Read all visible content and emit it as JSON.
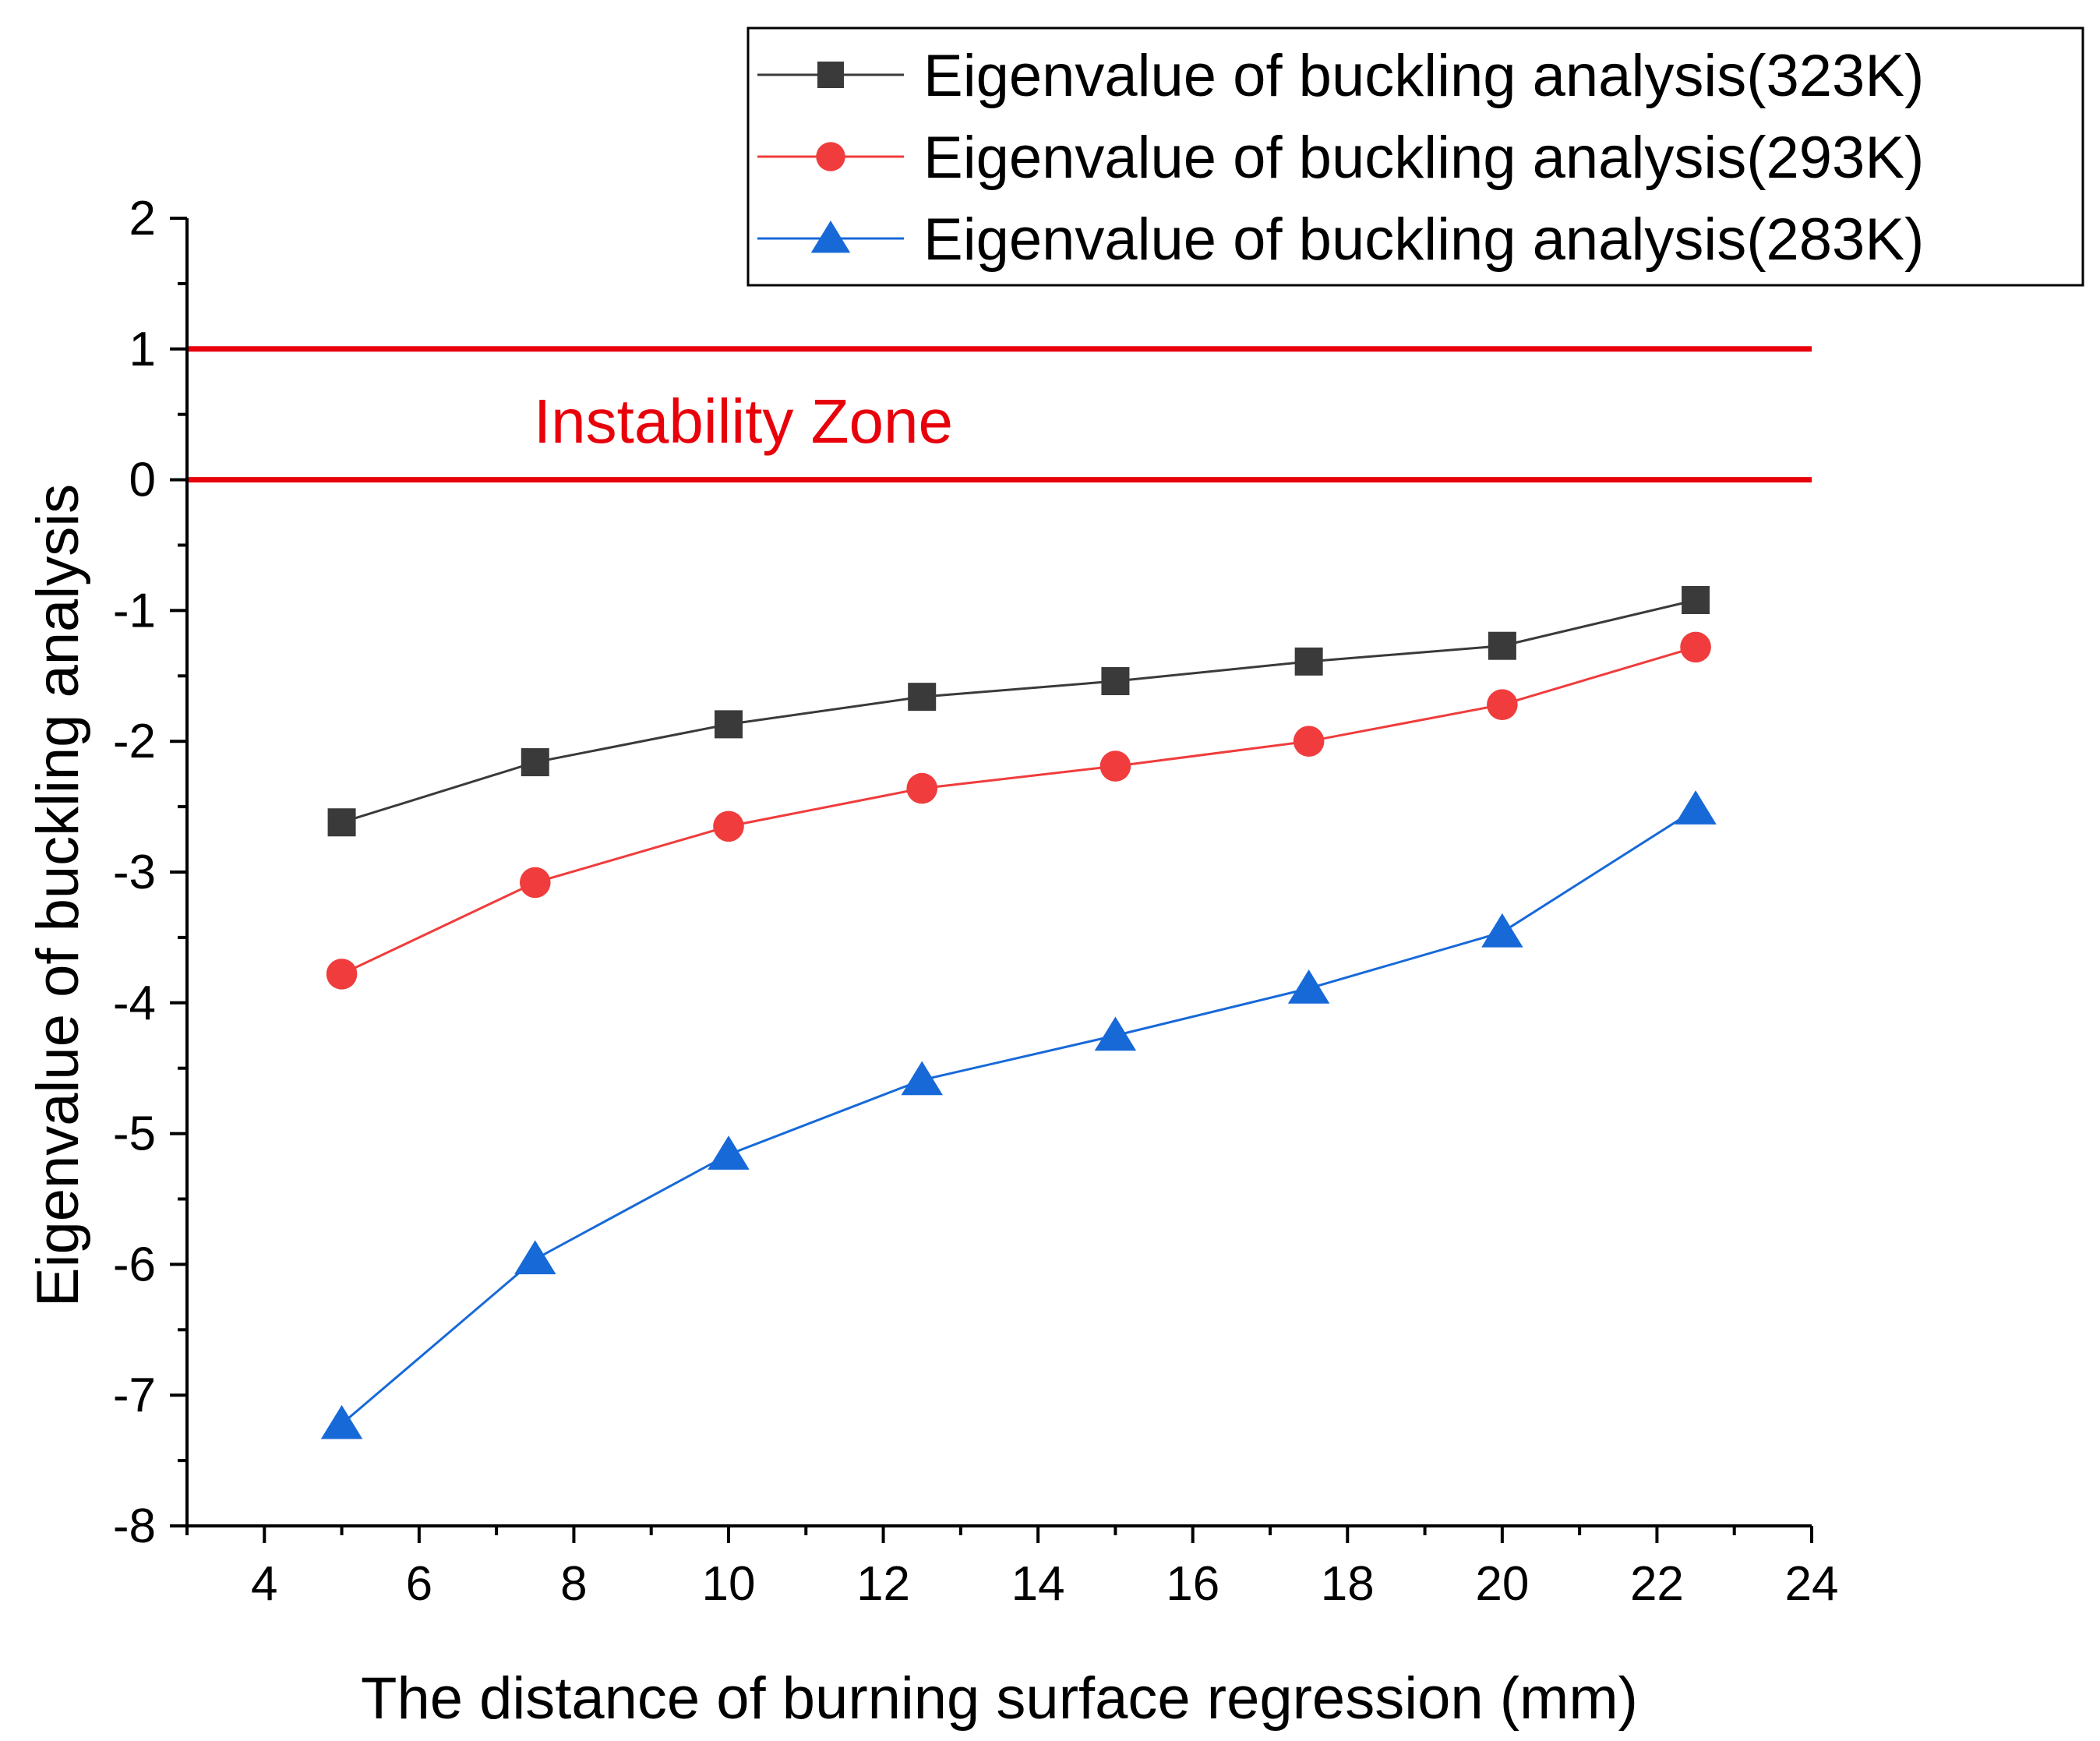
{
  "chart_data": {
    "type": "line",
    "title": "",
    "xlabel": "The distance of burning surface regression (mm)",
    "ylabel": "Eigenvalue of buckling analysis",
    "xlim": [
      3,
      24
    ],
    "ylim": [
      -8,
      2
    ],
    "xticks": [
      4,
      6,
      8,
      10,
      12,
      14,
      16,
      18,
      20,
      22,
      24
    ],
    "yticks": [
      2,
      1,
      0,
      -1,
      -2,
      -3,
      -4,
      -5,
      -6,
      -7,
      -8
    ],
    "x": [
      5,
      7.5,
      10,
      12.5,
      15,
      17.5,
      20,
      22.5
    ],
    "series": [
      {
        "name": "Eigenvalue of buckling analysis(323K)",
        "marker": "square",
        "color": "#3a3a3a",
        "values": [
          -2.62,
          -2.16,
          -1.87,
          -1.66,
          -1.54,
          -1.39,
          -1.27,
          -0.92
        ]
      },
      {
        "name": "Eigenvalue of buckling analysis(293K)",
        "marker": "circle",
        "color": "#f03c3c",
        "values": [
          -3.78,
          -3.08,
          -2.65,
          -2.36,
          -2.19,
          -2.0,
          -1.72,
          -1.28
        ]
      },
      {
        "name": "Eigenvalue of buckling analysis(283K)",
        "marker": "triangle",
        "color": "#1769d8",
        "values": [
          -7.22,
          -5.96,
          -5.16,
          -4.59,
          -4.25,
          -3.89,
          -3.46,
          -2.52
        ]
      }
    ],
    "reference_lines": [
      {
        "y": 1,
        "color": "#e8000b"
      },
      {
        "y": 0,
        "color": "#e8000b"
      }
    ],
    "annotation": {
      "text": "Instability Zone",
      "x": 10.1,
      "y": 0.45,
      "color": "#e8000b"
    },
    "legend": "top-right"
  }
}
